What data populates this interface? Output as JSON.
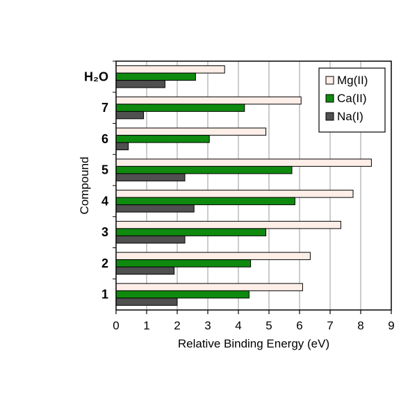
{
  "chart_data": {
    "type": "bar",
    "orientation": "horizontal",
    "categories": [
      "1",
      "2",
      "3",
      "4",
      "5",
      "6",
      "7",
      "H₂O"
    ],
    "series": [
      {
        "name": "Mg(II)",
        "color": "#fdeee8",
        "values": [
          6.1,
          6.35,
          7.35,
          7.75,
          8.35,
          4.9,
          6.05,
          3.55
        ]
      },
      {
        "name": "Ca(II)",
        "color": "#0f8a0f",
        "values": [
          4.35,
          4.4,
          4.9,
          5.85,
          5.75,
          3.05,
          4.2,
          2.6
        ]
      },
      {
        "name": "Na(I)",
        "color": "#505050",
        "values": [
          2.0,
          1.9,
          2.25,
          2.55,
          2.25,
          0.4,
          0.9,
          1.6
        ]
      }
    ],
    "xlabel": "Relative Binding Energy (eV)",
    "ylabel": "Compound",
    "xlim": [
      0,
      9
    ],
    "xticks": [
      "0",
      "1",
      "2",
      "3",
      "4",
      "5",
      "6",
      "7",
      "8",
      "9"
    ],
    "grid": "vertical",
    "legend_position": "top-right"
  }
}
